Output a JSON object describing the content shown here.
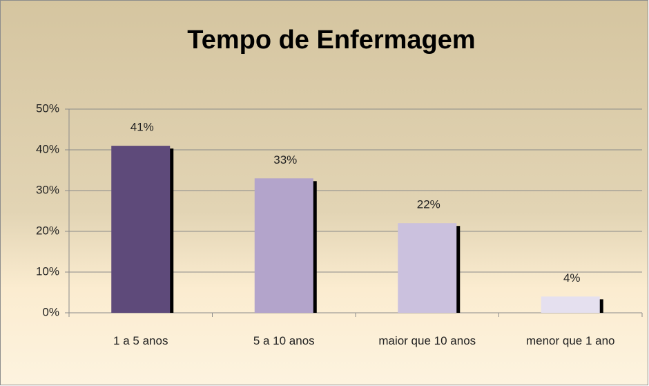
{
  "chart_data": {
    "type": "bar",
    "title": "Tempo de Enfermagem",
    "categories": [
      "1 a 5 anos",
      "5 a 10 anos",
      "maior que 10 anos",
      "menor que 1 ano"
    ],
    "values": [
      41,
      33,
      22,
      4
    ],
    "value_labels": [
      "41%",
      "33%",
      "22%",
      "4%"
    ],
    "colors": [
      "#5e4a7a",
      "#b3a4cb",
      "#cbc1de",
      "#e5e0ef"
    ],
    "ylim": [
      0,
      50
    ],
    "yticks": [
      {
        "value": 0,
        "label": "0%"
      },
      {
        "value": 10,
        "label": "10%"
      },
      {
        "value": 20,
        "label": "20%"
      },
      {
        "value": 30,
        "label": "30%"
      },
      {
        "value": 40,
        "label": "40%"
      },
      {
        "value": 50,
        "label": "50%"
      }
    ],
    "grid": true
  }
}
